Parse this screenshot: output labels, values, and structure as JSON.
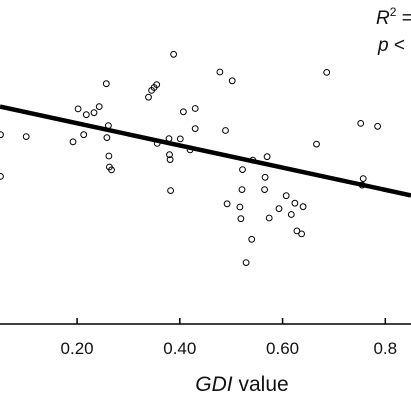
{
  "chart_data": {
    "type": "scatter",
    "xlabel_var": "GDI",
    "xlabel_rest": " value",
    "ylabel": "",
    "xlim": [
      0.05,
      0.85
    ],
    "ylim": [
      0,
      1
    ],
    "x_ticks": [
      {
        "value": 0.2,
        "label": "0.20"
      },
      {
        "value": 0.4,
        "label": "0.40"
      },
      {
        "value": 0.6,
        "label": "0.60"
      },
      {
        "value": 0.8,
        "label": "0.8"
      }
    ],
    "annotations": {
      "r2_prefix": "R",
      "r2_exp": "2",
      "r2_suffix": " =",
      "p_prefix": "p",
      "p_suffix": " <"
    },
    "trendline": {
      "x": [
        0.05,
        0.85
      ],
      "y": [
        0.67,
        0.395
      ]
    },
    "series": [
      {
        "points": [
          {
            "x": 0.051,
            "y": 0.583
          },
          {
            "x": 0.051,
            "y": 0.454
          },
          {
            "x": 0.101,
            "y": 0.577
          },
          {
            "x": 0.192,
            "y": 0.561
          },
          {
            "x": 0.202,
            "y": 0.663
          },
          {
            "x": 0.213,
            "y": 0.583
          },
          {
            "x": 0.218,
            "y": 0.645
          },
          {
            "x": 0.233,
            "y": 0.651
          },
          {
            "x": 0.243,
            "y": 0.67
          },
          {
            "x": 0.257,
            "y": 0.741
          },
          {
            "x": 0.258,
            "y": 0.574
          },
          {
            "x": 0.261,
            "y": 0.611
          },
          {
            "x": 0.262,
            "y": 0.517
          },
          {
            "x": 0.263,
            "y": 0.483
          },
          {
            "x": 0.267,
            "y": 0.474
          },
          {
            "x": 0.339,
            "y": 0.699
          },
          {
            "x": 0.345,
            "y": 0.72
          },
          {
            "x": 0.35,
            "y": 0.729
          },
          {
            "x": 0.355,
            "y": 0.738
          },
          {
            "x": 0.356,
            "y": 0.556
          },
          {
            "x": 0.379,
            "y": 0.571
          },
          {
            "x": 0.38,
            "y": 0.521
          },
          {
            "x": 0.381,
            "y": 0.506
          },
          {
            "x": 0.382,
            "y": 0.41
          },
          {
            "x": 0.388,
            "y": 0.832
          },
          {
            "x": 0.401,
            "y": 0.57
          },
          {
            "x": 0.407,
            "y": 0.654
          },
          {
            "x": 0.42,
            "y": 0.536
          },
          {
            "x": 0.43,
            "y": 0.602
          },
          {
            "x": 0.43,
            "y": 0.664
          },
          {
            "x": 0.478,
            "y": 0.777
          },
          {
            "x": 0.489,
            "y": 0.596
          },
          {
            "x": 0.492,
            "y": 0.369
          },
          {
            "x": 0.502,
            "y": 0.75
          },
          {
            "x": 0.517,
            "y": 0.359
          },
          {
            "x": 0.519,
            "y": 0.323
          },
          {
            "x": 0.521,
            "y": 0.413
          },
          {
            "x": 0.522,
            "y": 0.475
          },
          {
            "x": 0.529,
            "y": 0.187
          },
          {
            "x": 0.54,
            "y": 0.259
          },
          {
            "x": 0.542,
            "y": 0.504
          },
          {
            "x": 0.565,
            "y": 0.413
          },
          {
            "x": 0.566,
            "y": 0.451
          },
          {
            "x": 0.57,
            "y": 0.515
          },
          {
            "x": 0.574,
            "y": 0.325
          },
          {
            "x": 0.593,
            "y": 0.354
          },
          {
            "x": 0.607,
            "y": 0.394
          },
          {
            "x": 0.617,
            "y": 0.336
          },
          {
            "x": 0.624,
            "y": 0.371
          },
          {
            "x": 0.628,
            "y": 0.285
          },
          {
            "x": 0.637,
            "y": 0.276
          },
          {
            "x": 0.64,
            "y": 0.36
          },
          {
            "x": 0.666,
            "y": 0.554
          },
          {
            "x": 0.686,
            "y": 0.776
          },
          {
            "x": 0.752,
            "y": 0.618
          },
          {
            "x": 0.755,
            "y": 0.427
          },
          {
            "x": 0.757,
            "y": 0.447
          },
          {
            "x": 0.785,
            "y": 0.609
          }
        ]
      }
    ],
    "grid": false,
    "legend": "none"
  }
}
